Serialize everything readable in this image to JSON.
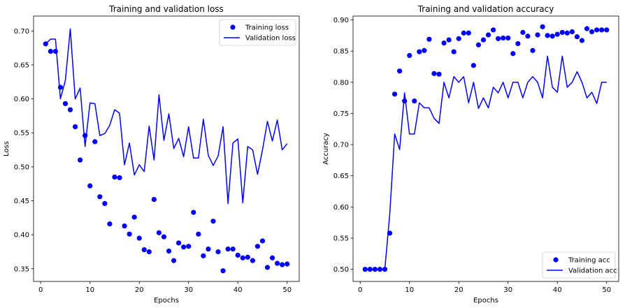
{
  "chart_data": [
    {
      "type": "line",
      "title": "Training and validation loss",
      "xlabel": "Epochs",
      "ylabel": "Loss",
      "xlim": [
        -1.45,
        52.45
      ],
      "ylim": [
        0.3313,
        0.7219
      ],
      "xticks": [
        0,
        10,
        20,
        30,
        40,
        50
      ],
      "xtick_labels": [
        "0",
        "10",
        "20",
        "30",
        "40",
        "50"
      ],
      "yticks": [
        0.35,
        0.4,
        0.45,
        0.5,
        0.55,
        0.6,
        0.65,
        0.7
      ],
      "ytick_labels": [
        "0.35",
        "0.40",
        "0.45",
        "0.50",
        "0.55",
        "0.60",
        "0.65",
        "0.70"
      ],
      "grid": false,
      "legend_position": "top-right",
      "x": [
        1,
        2,
        3,
        4,
        5,
        6,
        7,
        8,
        9,
        10,
        11,
        12,
        13,
        14,
        15,
        16,
        17,
        18,
        19,
        20,
        21,
        22,
        23,
        24,
        25,
        26,
        27,
        28,
        29,
        30,
        31,
        32,
        33,
        34,
        35,
        36,
        37,
        38,
        39,
        40,
        41,
        42,
        43,
        44,
        45,
        46,
        47,
        48,
        49,
        50
      ],
      "series": [
        {
          "name": "Training loss",
          "style": "markers",
          "color": "#0000ff",
          "values": [
            0.681,
            0.67,
            0.67,
            0.617,
            0.593,
            0.584,
            0.559,
            0.51,
            0.546,
            0.472,
            0.537,
            0.456,
            0.446,
            0.416,
            0.485,
            0.484,
            0.413,
            0.401,
            0.426,
            0.395,
            0.378,
            0.375,
            0.452,
            0.403,
            0.397,
            0.376,
            0.362,
            0.388,
            0.382,
            0.383,
            0.433,
            0.401,
            0.369,
            0.379,
            0.42,
            0.375,
            0.347,
            0.379,
            0.379,
            0.37,
            0.366,
            0.367,
            0.362,
            0.383,
            0.391,
            0.352,
            0.366,
            0.358,
            0.356,
            0.357
          ]
        },
        {
          "name": "Validation loss",
          "style": "line",
          "color": "#0000ff",
          "values": [
            0.681,
            0.688,
            0.688,
            0.6,
            0.627,
            0.703,
            0.6,
            0.616,
            0.53,
            0.594,
            0.593,
            0.546,
            0.549,
            0.561,
            0.584,
            0.579,
            0.503,
            0.535,
            0.488,
            0.503,
            0.493,
            0.56,
            0.51,
            0.606,
            0.539,
            0.578,
            0.527,
            0.542,
            0.515,
            0.559,
            0.513,
            0.513,
            0.57,
            0.517,
            0.502,
            0.516,
            0.559,
            0.446,
            0.535,
            0.541,
            0.447,
            0.53,
            0.525,
            0.489,
            0.525,
            0.567,
            0.538,
            0.569,
            0.525,
            0.534
          ]
        }
      ]
    },
    {
      "type": "line",
      "title": "Training and validation accuracy",
      "xlabel": "Epochs",
      "ylabel": "Accuracy",
      "xlim": [
        -1.45,
        52.45
      ],
      "ylim": [
        0.4805,
        0.9062
      ],
      "xticks": [
        0,
        10,
        20,
        30,
        40,
        50
      ],
      "xtick_labels": [
        "0",
        "10",
        "20",
        "30",
        "40",
        "50"
      ],
      "yticks": [
        0.5,
        0.55,
        0.6,
        0.65,
        0.7,
        0.75,
        0.8,
        0.85,
        0.9
      ],
      "ytick_labels": [
        "0.50",
        "0.55",
        "0.60",
        "0.65",
        "0.70",
        "0.75",
        "0.80",
        "0.85",
        "0.90"
      ],
      "grid": false,
      "legend_position": "bottom-right",
      "x": [
        1,
        2,
        3,
        4,
        5,
        6,
        7,
        8,
        9,
        10,
        11,
        12,
        13,
        14,
        15,
        16,
        17,
        18,
        19,
        20,
        21,
        22,
        23,
        24,
        25,
        26,
        27,
        28,
        29,
        30,
        31,
        32,
        33,
        34,
        35,
        36,
        37,
        38,
        39,
        40,
        41,
        42,
        43,
        44,
        45,
        46,
        47,
        48,
        49,
        50
      ],
      "series": [
        {
          "name": "Training acc",
          "style": "markers",
          "color": "#0000ff",
          "values": [
            0.5,
            0.5,
            0.5,
            0.5,
            0.5,
            0.558,
            0.781,
            0.818,
            0.77,
            0.843,
            0.77,
            0.849,
            0.851,
            0.869,
            0.814,
            0.813,
            0.863,
            0.868,
            0.849,
            0.87,
            0.879,
            0.879,
            0.827,
            0.86,
            0.868,
            0.876,
            0.884,
            0.87,
            0.871,
            0.871,
            0.846,
            0.862,
            0.88,
            0.874,
            0.851,
            0.876,
            0.889,
            0.875,
            0.874,
            0.877,
            0.88,
            0.879,
            0.881,
            0.873,
            0.867,
            0.886,
            0.881,
            0.884,
            0.884,
            0.884
          ]
        },
        {
          "name": "Validation acc",
          "style": "line",
          "color": "#0000ff",
          "values": [
            0.5,
            0.5,
            0.5,
            0.5,
            0.5,
            0.589,
            0.717,
            0.692,
            0.783,
            0.717,
            0.717,
            0.767,
            0.759,
            0.759,
            0.742,
            0.734,
            0.8,
            0.775,
            0.809,
            0.8,
            0.809,
            0.767,
            0.8,
            0.758,
            0.775,
            0.759,
            0.792,
            0.783,
            0.8,
            0.775,
            0.8,
            0.8,
            0.775,
            0.8,
            0.809,
            0.8,
            0.775,
            0.842,
            0.792,
            0.784,
            0.842,
            0.792,
            0.8,
            0.817,
            0.8,
            0.775,
            0.784,
            0.766,
            0.8,
            0.8
          ]
        }
      ]
    }
  ]
}
